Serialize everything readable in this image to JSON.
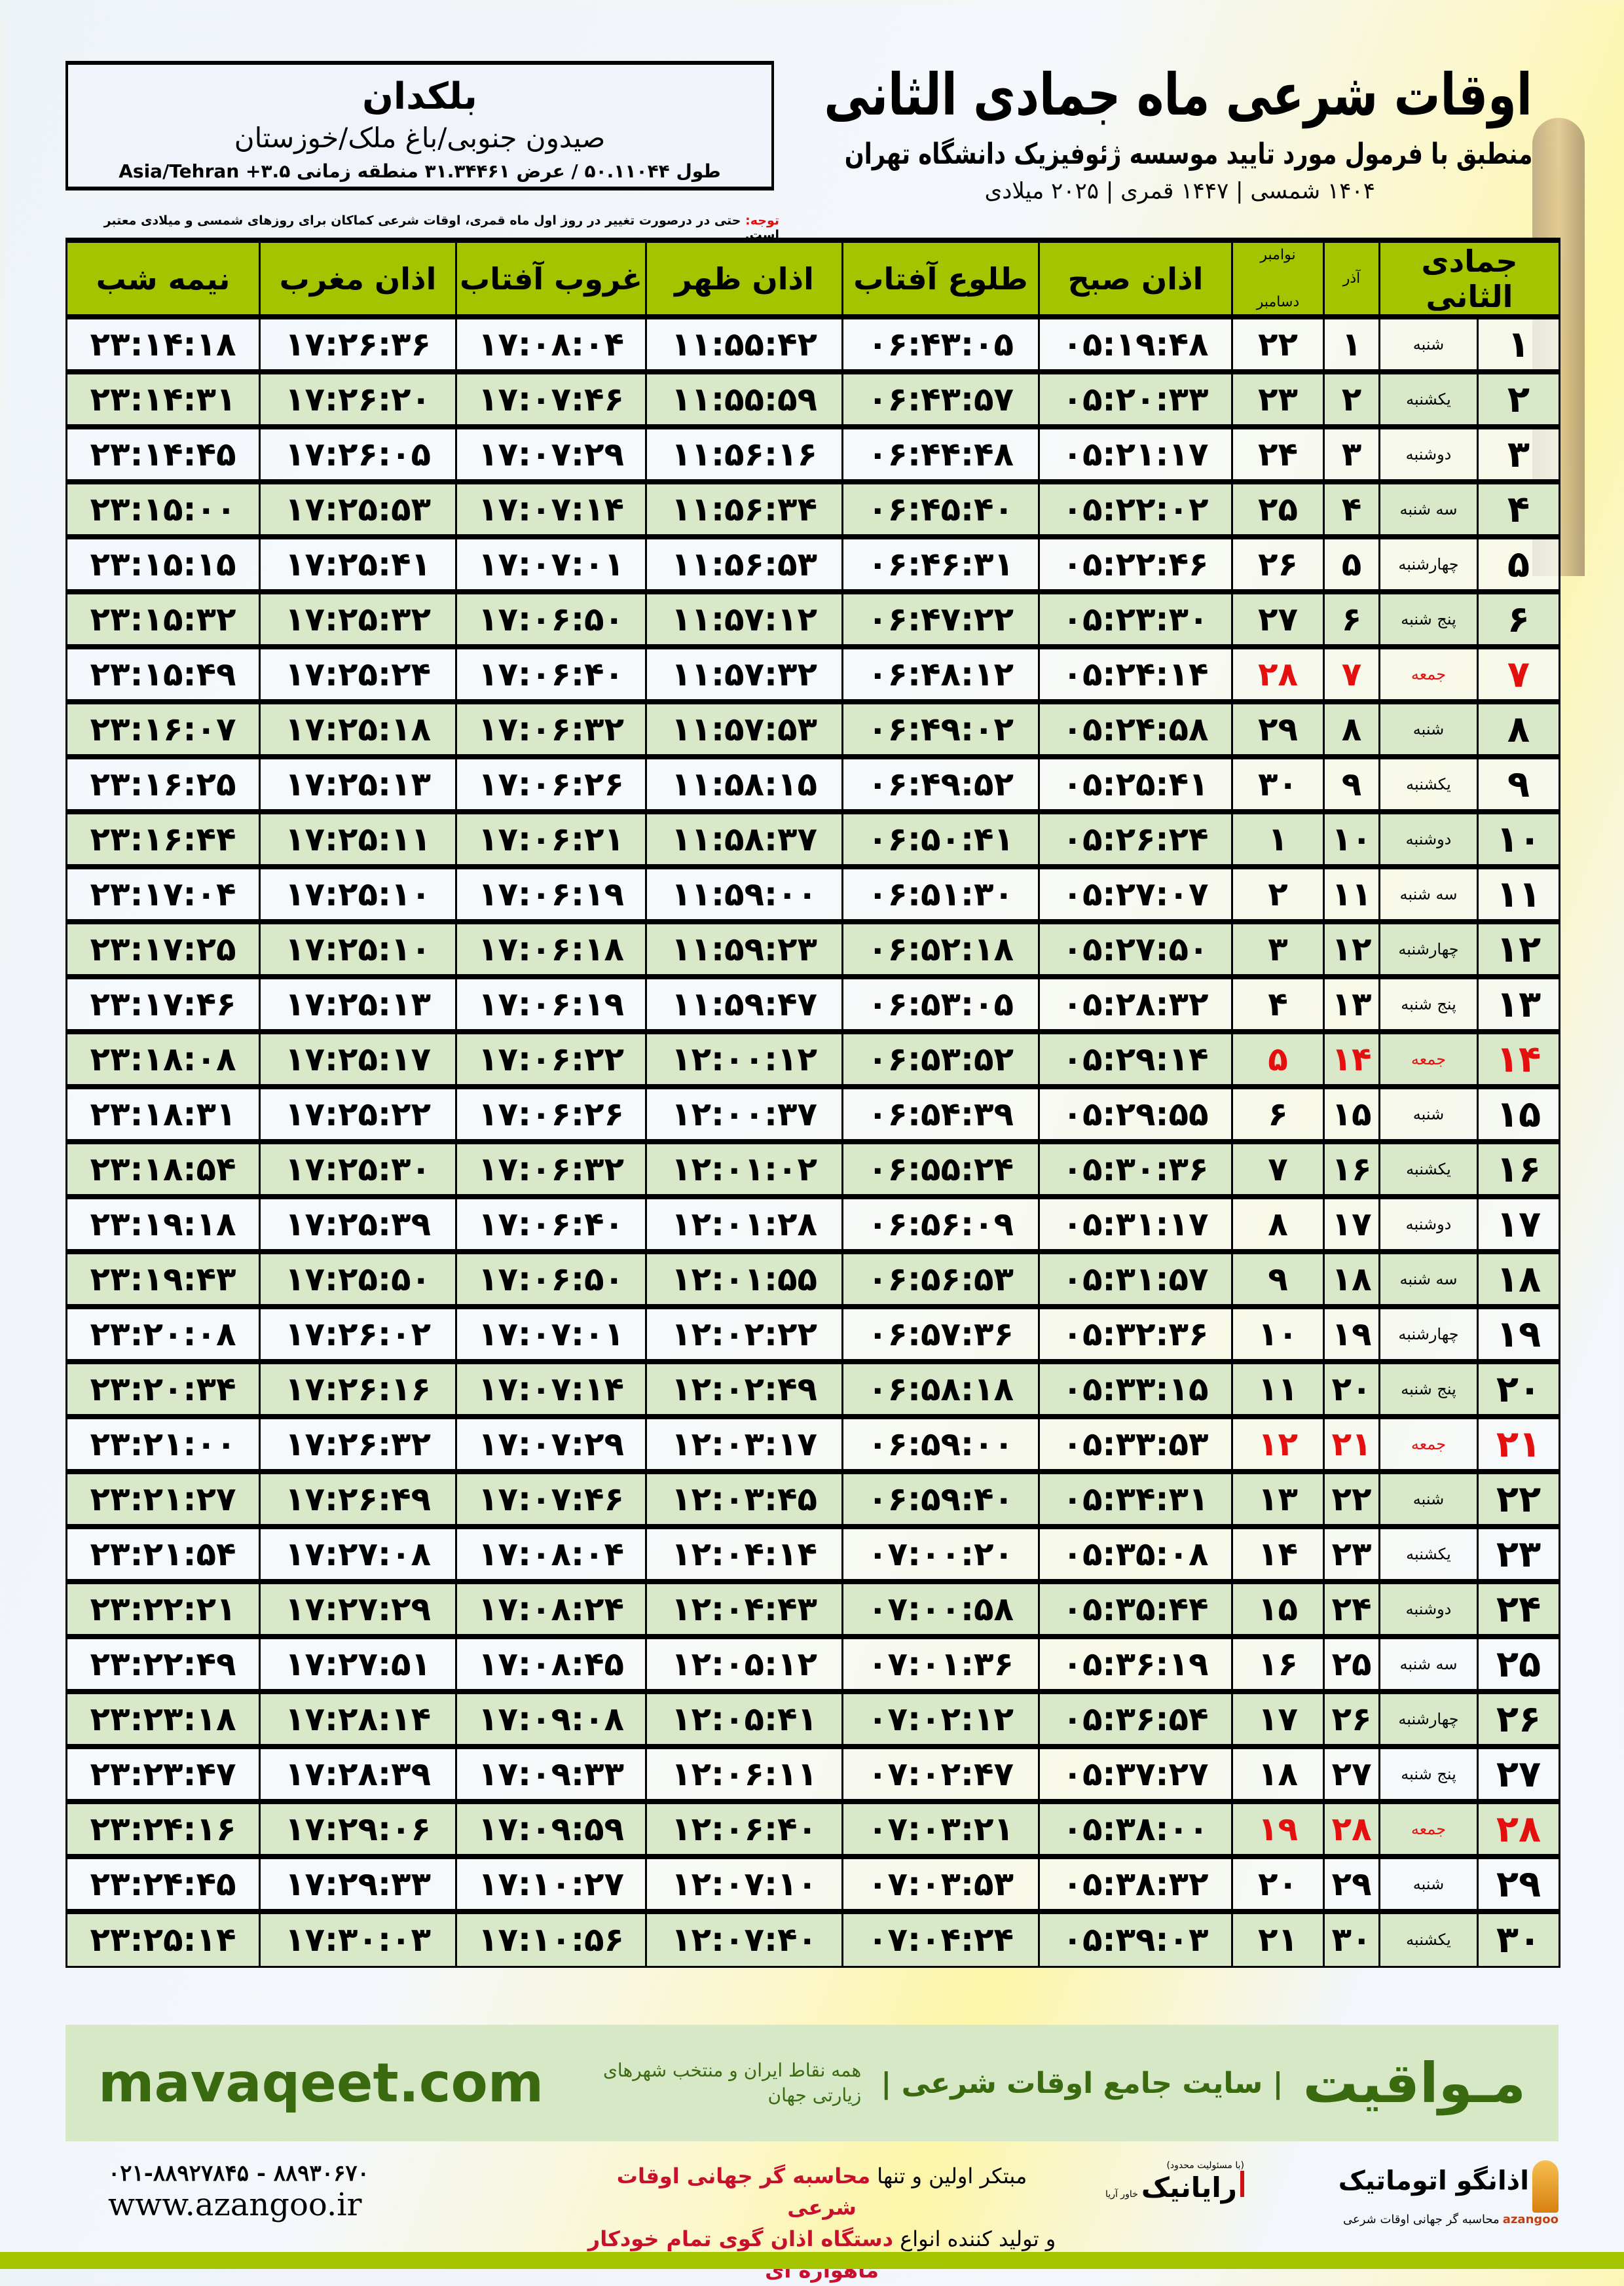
{
  "location": {
    "name": "بلکدان",
    "area": "صیدون جنوبی/باغ ملک/خوزستان",
    "coords": "طول ۵۰.۱۱۰۴۴ / عرض ۳۱.۳۴۴۶۱ منطقه زمانی ۳.۵+ Asia/Tehran"
  },
  "header": {
    "title": "اوقات شرعی ماه جمادی الثانی",
    "subtitle": "منطبق با فرمول مورد تایید موسسه ژئوفیزیک دانشگاه تهران",
    "dates": "۱۴۰۴ شمسی | ۱۴۴۷ قمری | ۲۰۲۵ میلادی"
  },
  "note": {
    "label": "توجه:",
    "text": " حتی در درصورت تغییر در روز اول ماه قمری، اوقات شرعی کماکان برای روزهای شمسی و میلادی معتبر است."
  },
  "colors": {
    "header_green": "#a5c400",
    "row_green": "#d8e8c8",
    "holiday_red": "#e41010",
    "brand_green": "#3a6a10"
  },
  "table": {
    "headers": {
      "day": "جمادی الثانی",
      "azar": "آذر",
      "gregorian_top": "نوامبر",
      "gregorian_bottom": "دسامبر",
      "fajr": "اذان صبح",
      "sunrise": "طلوع آفتاب",
      "dhuhr": "اذان ظهر",
      "sunset": "غروب آفتاب",
      "maghrib": "اذان مغرب",
      "midnight": "نیمه شب"
    },
    "rows": [
      [
        "۱",
        "شنبه",
        "۱",
        "۲۲",
        "۰۵:۱۹:۴۸",
        "۰۶:۴۳:۰۵",
        "۱۱:۵۵:۴۲",
        "۱۷:۰۸:۰۴",
        "۱۷:۲۶:۳۶",
        "۲۳:۱۴:۱۸",
        false
      ],
      [
        "۲",
        "یکشنبه",
        "۲",
        "۲۳",
        "۰۵:۲۰:۳۳",
        "۰۶:۴۳:۵۷",
        "۱۱:۵۵:۵۹",
        "۱۷:۰۷:۴۶",
        "۱۷:۲۶:۲۰",
        "۲۳:۱۴:۳۱",
        false
      ],
      [
        "۳",
        "دوشنبه",
        "۳",
        "۲۴",
        "۰۵:۲۱:۱۷",
        "۰۶:۴۴:۴۸",
        "۱۱:۵۶:۱۶",
        "۱۷:۰۷:۲۹",
        "۱۷:۲۶:۰۵",
        "۲۳:۱۴:۴۵",
        false
      ],
      [
        "۴",
        "سه شنبه",
        "۴",
        "۲۵",
        "۰۵:۲۲:۰۲",
        "۰۶:۴۵:۴۰",
        "۱۱:۵۶:۳۴",
        "۱۷:۰۷:۱۴",
        "۱۷:۲۵:۵۳",
        "۲۳:۱۵:۰۰",
        false
      ],
      [
        "۵",
        "چهارشنبه",
        "۵",
        "۲۶",
        "۰۵:۲۲:۴۶",
        "۰۶:۴۶:۳۱",
        "۱۱:۵۶:۵۳",
        "۱۷:۰۷:۰۱",
        "۱۷:۲۵:۴۱",
        "۲۳:۱۵:۱۵",
        false
      ],
      [
        "۶",
        "پنج شنبه",
        "۶",
        "۲۷",
        "۰۵:۲۳:۳۰",
        "۰۶:۴۷:۲۲",
        "۱۱:۵۷:۱۲",
        "۱۷:۰۶:۵۰",
        "۱۷:۲۵:۳۲",
        "۲۳:۱۵:۳۲",
        false
      ],
      [
        "۷",
        "جمعه",
        "۷",
        "۲۸",
        "۰۵:۲۴:۱۴",
        "۰۶:۴۸:۱۲",
        "۱۱:۵۷:۳۲",
        "۱۷:۰۶:۴۰",
        "۱۷:۲۵:۲۴",
        "۲۳:۱۵:۴۹",
        true
      ],
      [
        "۸",
        "شنبه",
        "۸",
        "۲۹",
        "۰۵:۲۴:۵۸",
        "۰۶:۴۹:۰۲",
        "۱۱:۵۷:۵۳",
        "۱۷:۰۶:۳۲",
        "۱۷:۲۵:۱۸",
        "۲۳:۱۶:۰۷",
        false
      ],
      [
        "۹",
        "یکشنبه",
        "۹",
        "۳۰",
        "۰۵:۲۵:۴۱",
        "۰۶:۴۹:۵۲",
        "۱۱:۵۸:۱۵",
        "۱۷:۰۶:۲۶",
        "۱۷:۲۵:۱۳",
        "۲۳:۱۶:۲۵",
        false
      ],
      [
        "۱۰",
        "دوشنبه",
        "۱۰",
        "۱",
        "۰۵:۲۶:۲۴",
        "۰۶:۵۰:۴۱",
        "۱۱:۵۸:۳۷",
        "۱۷:۰۶:۲۱",
        "۱۷:۲۵:۱۱",
        "۲۳:۱۶:۴۴",
        false
      ],
      [
        "۱۱",
        "سه شنبه",
        "۱۱",
        "۲",
        "۰۵:۲۷:۰۷",
        "۰۶:۵۱:۳۰",
        "۱۱:۵۹:۰۰",
        "۱۷:۰۶:۱۹",
        "۱۷:۲۵:۱۰",
        "۲۳:۱۷:۰۴",
        false
      ],
      [
        "۱۲",
        "چهارشنبه",
        "۱۲",
        "۳",
        "۰۵:۲۷:۵۰",
        "۰۶:۵۲:۱۸",
        "۱۱:۵۹:۲۳",
        "۱۷:۰۶:۱۸",
        "۱۷:۲۵:۱۰",
        "۲۳:۱۷:۲۵",
        false
      ],
      [
        "۱۳",
        "پنج شنبه",
        "۱۳",
        "۴",
        "۰۵:۲۸:۳۲",
        "۰۶:۵۳:۰۵",
        "۱۱:۵۹:۴۷",
        "۱۷:۰۶:۱۹",
        "۱۷:۲۵:۱۳",
        "۲۳:۱۷:۴۶",
        false
      ],
      [
        "۱۴",
        "جمعه",
        "۱۴",
        "۵",
        "۰۵:۲۹:۱۴",
        "۰۶:۵۳:۵۲",
        "۱۲:۰۰:۱۲",
        "۱۷:۰۶:۲۲",
        "۱۷:۲۵:۱۷",
        "۲۳:۱۸:۰۸",
        true
      ],
      [
        "۱۵",
        "شنبه",
        "۱۵",
        "۶",
        "۰۵:۲۹:۵۵",
        "۰۶:۵۴:۳۹",
        "۱۲:۰۰:۳۷",
        "۱۷:۰۶:۲۶",
        "۱۷:۲۵:۲۲",
        "۲۳:۱۸:۳۱",
        false
      ],
      [
        "۱۶",
        "یکشنبه",
        "۱۶",
        "۷",
        "۰۵:۳۰:۳۶",
        "۰۶:۵۵:۲۴",
        "۱۲:۰۱:۰۲",
        "۱۷:۰۶:۳۲",
        "۱۷:۲۵:۳۰",
        "۲۳:۱۸:۵۴",
        false
      ],
      [
        "۱۷",
        "دوشنبه",
        "۱۷",
        "۸",
        "۰۵:۳۱:۱۷",
        "۰۶:۵۶:۰۹",
        "۱۲:۰۱:۲۸",
        "۱۷:۰۶:۴۰",
        "۱۷:۲۵:۳۹",
        "۲۳:۱۹:۱۸",
        false
      ],
      [
        "۱۸",
        "سه شنبه",
        "۱۸",
        "۹",
        "۰۵:۳۱:۵۷",
        "۰۶:۵۶:۵۳",
        "۱۲:۰۱:۵۵",
        "۱۷:۰۶:۵۰",
        "۱۷:۲۵:۵۰",
        "۲۳:۱۹:۴۳",
        false
      ],
      [
        "۱۹",
        "چهارشنبه",
        "۱۹",
        "۱۰",
        "۰۵:۳۲:۳۶",
        "۰۶:۵۷:۳۶",
        "۱۲:۰۲:۲۲",
        "۱۷:۰۷:۰۱",
        "۱۷:۲۶:۰۲",
        "۲۳:۲۰:۰۸",
        false
      ],
      [
        "۲۰",
        "پنج شنبه",
        "۲۰",
        "۱۱",
        "۰۵:۳۳:۱۵",
        "۰۶:۵۸:۱۸",
        "۱۲:۰۲:۴۹",
        "۱۷:۰۷:۱۴",
        "۱۷:۲۶:۱۶",
        "۲۳:۲۰:۳۴",
        false
      ],
      [
        "۲۱",
        "جمعه",
        "۲۱",
        "۱۲",
        "۰۵:۳۳:۵۳",
        "۰۶:۵۹:۰۰",
        "۱۲:۰۳:۱۷",
        "۱۷:۰۷:۲۹",
        "۱۷:۲۶:۳۲",
        "۲۳:۲۱:۰۰",
        true
      ],
      [
        "۲۲",
        "شنبه",
        "۲۲",
        "۱۳",
        "۰۵:۳۴:۳۱",
        "۰۶:۵۹:۴۰",
        "۱۲:۰۳:۴۵",
        "۱۷:۰۷:۴۶",
        "۱۷:۲۶:۴۹",
        "۲۳:۲۱:۲۷",
        false
      ],
      [
        "۲۳",
        "یکشنبه",
        "۲۳",
        "۱۴",
        "۰۵:۳۵:۰۸",
        "۰۷:۰۰:۲۰",
        "۱۲:۰۴:۱۴",
        "۱۷:۰۸:۰۴",
        "۱۷:۲۷:۰۸",
        "۲۳:۲۱:۵۴",
        false
      ],
      [
        "۲۴",
        "دوشنبه",
        "۲۴",
        "۱۵",
        "۰۵:۳۵:۴۴",
        "۰۷:۰۰:۵۸",
        "۱۲:۰۴:۴۳",
        "۱۷:۰۸:۲۴",
        "۱۷:۲۷:۲۹",
        "۲۳:۲۲:۲۱",
        false
      ],
      [
        "۲۵",
        "سه شنبه",
        "۲۵",
        "۱۶",
        "۰۵:۳۶:۱۹",
        "۰۷:۰۱:۳۶",
        "۱۲:۰۵:۱۲",
        "۱۷:۰۸:۴۵",
        "۱۷:۲۷:۵۱",
        "۲۳:۲۲:۴۹",
        false
      ],
      [
        "۲۶",
        "چهارشنبه",
        "۲۶",
        "۱۷",
        "۰۵:۳۶:۵۴",
        "۰۷:۰۲:۱۲",
        "۱۲:۰۵:۴۱",
        "۱۷:۰۹:۰۸",
        "۱۷:۲۸:۱۴",
        "۲۳:۲۳:۱۸",
        false
      ],
      [
        "۲۷",
        "پنج شنبه",
        "۲۷",
        "۱۸",
        "۰۵:۳۷:۲۷",
        "۰۷:۰۲:۴۷",
        "۱۲:۰۶:۱۱",
        "۱۷:۰۹:۳۳",
        "۱۷:۲۸:۳۹",
        "۲۳:۲۳:۴۷",
        false
      ],
      [
        "۲۸",
        "جمعه",
        "۲۸",
        "۱۹",
        "۰۵:۳۸:۰۰",
        "۰۷:۰۳:۲۱",
        "۱۲:۰۶:۴۰",
        "۱۷:۰۹:۵۹",
        "۱۷:۲۹:۰۶",
        "۲۳:۲۴:۱۶",
        true
      ],
      [
        "۲۹",
        "شنبه",
        "۲۹",
        "۲۰",
        "۰۵:۳۸:۳۲",
        "۰۷:۰۳:۵۳",
        "۱۲:۰۷:۱۰",
        "۱۷:۱۰:۲۷",
        "۱۷:۲۹:۳۳",
        "۲۳:۲۴:۴۵",
        false
      ],
      [
        "۳۰",
        "یکشنبه",
        "۳۰",
        "۲۱",
        "۰۵:۳۹:۰۳",
        "۰۷:۰۴:۲۴",
        "۱۲:۰۷:۴۰",
        "۱۷:۱۰:۵۶",
        "۱۷:۳۰:۰۳",
        "۲۳:۲۵:۱۴",
        false
      ]
    ]
  },
  "banner": {
    "logo": "مـواقیت",
    "tagline": "| سایت جامع اوقات شرعی |",
    "sub": "همه نقاط ایران و منتخب شهرهای زیارتی جهان",
    "url": "mavaqeet.com"
  },
  "footer": {
    "azangoo_name": "اذانگو اتوماتیک",
    "azangoo_sub": "محاسبه گر جهانی اوقات شرعی",
    "azangoo_latin": "azangoo",
    "rayanik_name": "رایانیک",
    "rayanik_sub": "خاور آریا",
    "rayanik_small": "(با مسئولیت محدود)",
    "line1_a": "مبتکر اولین و تنها ",
    "line1_b": "محاسبه گر جهانی اوقات شرعی",
    "line2_a": "و تولید کننده انواع ",
    "line2_b": "دستگاه اذان گوی تمام خودکار ماهواره ای",
    "phone": "۰۲۱-۸۸۹۲۷۸۴۵ - ۸۸۹۳۰۶۷۰",
    "website": "www.azangoo.ir"
  }
}
